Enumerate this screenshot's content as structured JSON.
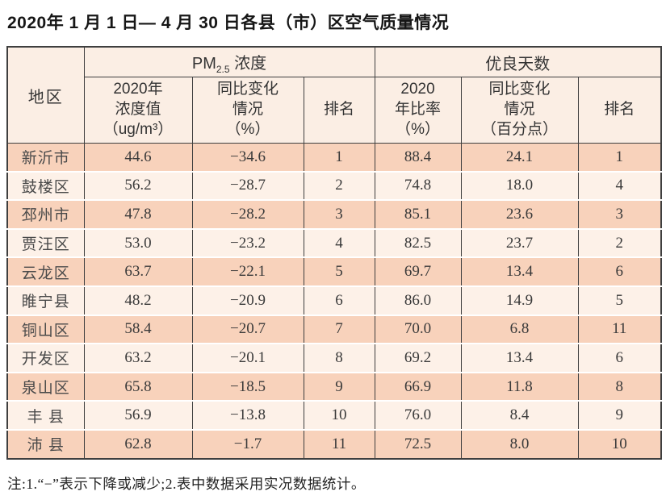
{
  "title": "2020年 1 月 1 日— 4 月 30 日各县（市）区空气质量情况",
  "note": "注:1.“−”表示下降或减少;2.表中数据采用实况数据统计。",
  "colors": {
    "row_dark": "#f8d2bb",
    "row_light": "#fdf1e8",
    "header_bg": "#fbeee4",
    "border": "#3f3f3f"
  },
  "table": {
    "header": {
      "region": "地区",
      "pm_group": {
        "main": "PM",
        "sub": "2.5",
        "rest": " 浓度"
      },
      "good_group": "优良天数",
      "pm_value": "2020年\n浓度值\n（ug/m³）",
      "pm_change": "同比变化\n情况\n（%）",
      "pm_rank": "排名",
      "good_ratio": "2020\n年比率\n（%）",
      "good_change": "同比变化\n情况\n（百分点）",
      "good_rank": "排名"
    },
    "rows": [
      {
        "region": "新沂市",
        "pm_value": "44.6",
        "pm_change": "−34.6",
        "pm_rank": "1",
        "good_ratio": "88.4",
        "good_change": "24.1",
        "good_rank": "1"
      },
      {
        "region": "鼓楼区",
        "pm_value": "56.2",
        "pm_change": "−28.7",
        "pm_rank": "2",
        "good_ratio": "74.8",
        "good_change": "18.0",
        "good_rank": "4"
      },
      {
        "region": "邳州市",
        "pm_value": "47.8",
        "pm_change": "−28.2",
        "pm_rank": "3",
        "good_ratio": "85.1",
        "good_change": "23.6",
        "good_rank": "3"
      },
      {
        "region": "贾汪区",
        "pm_value": "53.0",
        "pm_change": "−23.2",
        "pm_rank": "4",
        "good_ratio": "82.5",
        "good_change": "23.7",
        "good_rank": "2"
      },
      {
        "region": "云龙区",
        "pm_value": "63.7",
        "pm_change": "−22.1",
        "pm_rank": "5",
        "good_ratio": "69.7",
        "good_change": "13.4",
        "good_rank": "6"
      },
      {
        "region": "睢宁县",
        "pm_value": "48.2",
        "pm_change": "−20.9",
        "pm_rank": "6",
        "good_ratio": "86.0",
        "good_change": "14.9",
        "good_rank": "5"
      },
      {
        "region": "铜山区",
        "pm_value": "58.4",
        "pm_change": "−20.7",
        "pm_rank": "7",
        "good_ratio": "70.0",
        "good_change": "6.8",
        "good_rank": "11"
      },
      {
        "region": "开发区",
        "pm_value": "63.2",
        "pm_change": "−20.1",
        "pm_rank": "8",
        "good_ratio": "69.2",
        "good_change": "13.4",
        "good_rank": "6"
      },
      {
        "region": "泉山区",
        "pm_value": "65.8",
        "pm_change": "−18.5",
        "pm_rank": "9",
        "good_ratio": "66.9",
        "good_change": "11.8",
        "good_rank": "8"
      },
      {
        "region": "丰 县",
        "pm_value": "56.9",
        "pm_change": "−13.8",
        "pm_rank": "10",
        "good_ratio": "76.0",
        "good_change": "8.4",
        "good_rank": "9"
      },
      {
        "region": "沛 县",
        "pm_value": "62.8",
        "pm_change": "−1.7",
        "pm_rank": "11",
        "good_ratio": "72.5",
        "good_change": "8.0",
        "good_rank": "10"
      }
    ]
  }
}
